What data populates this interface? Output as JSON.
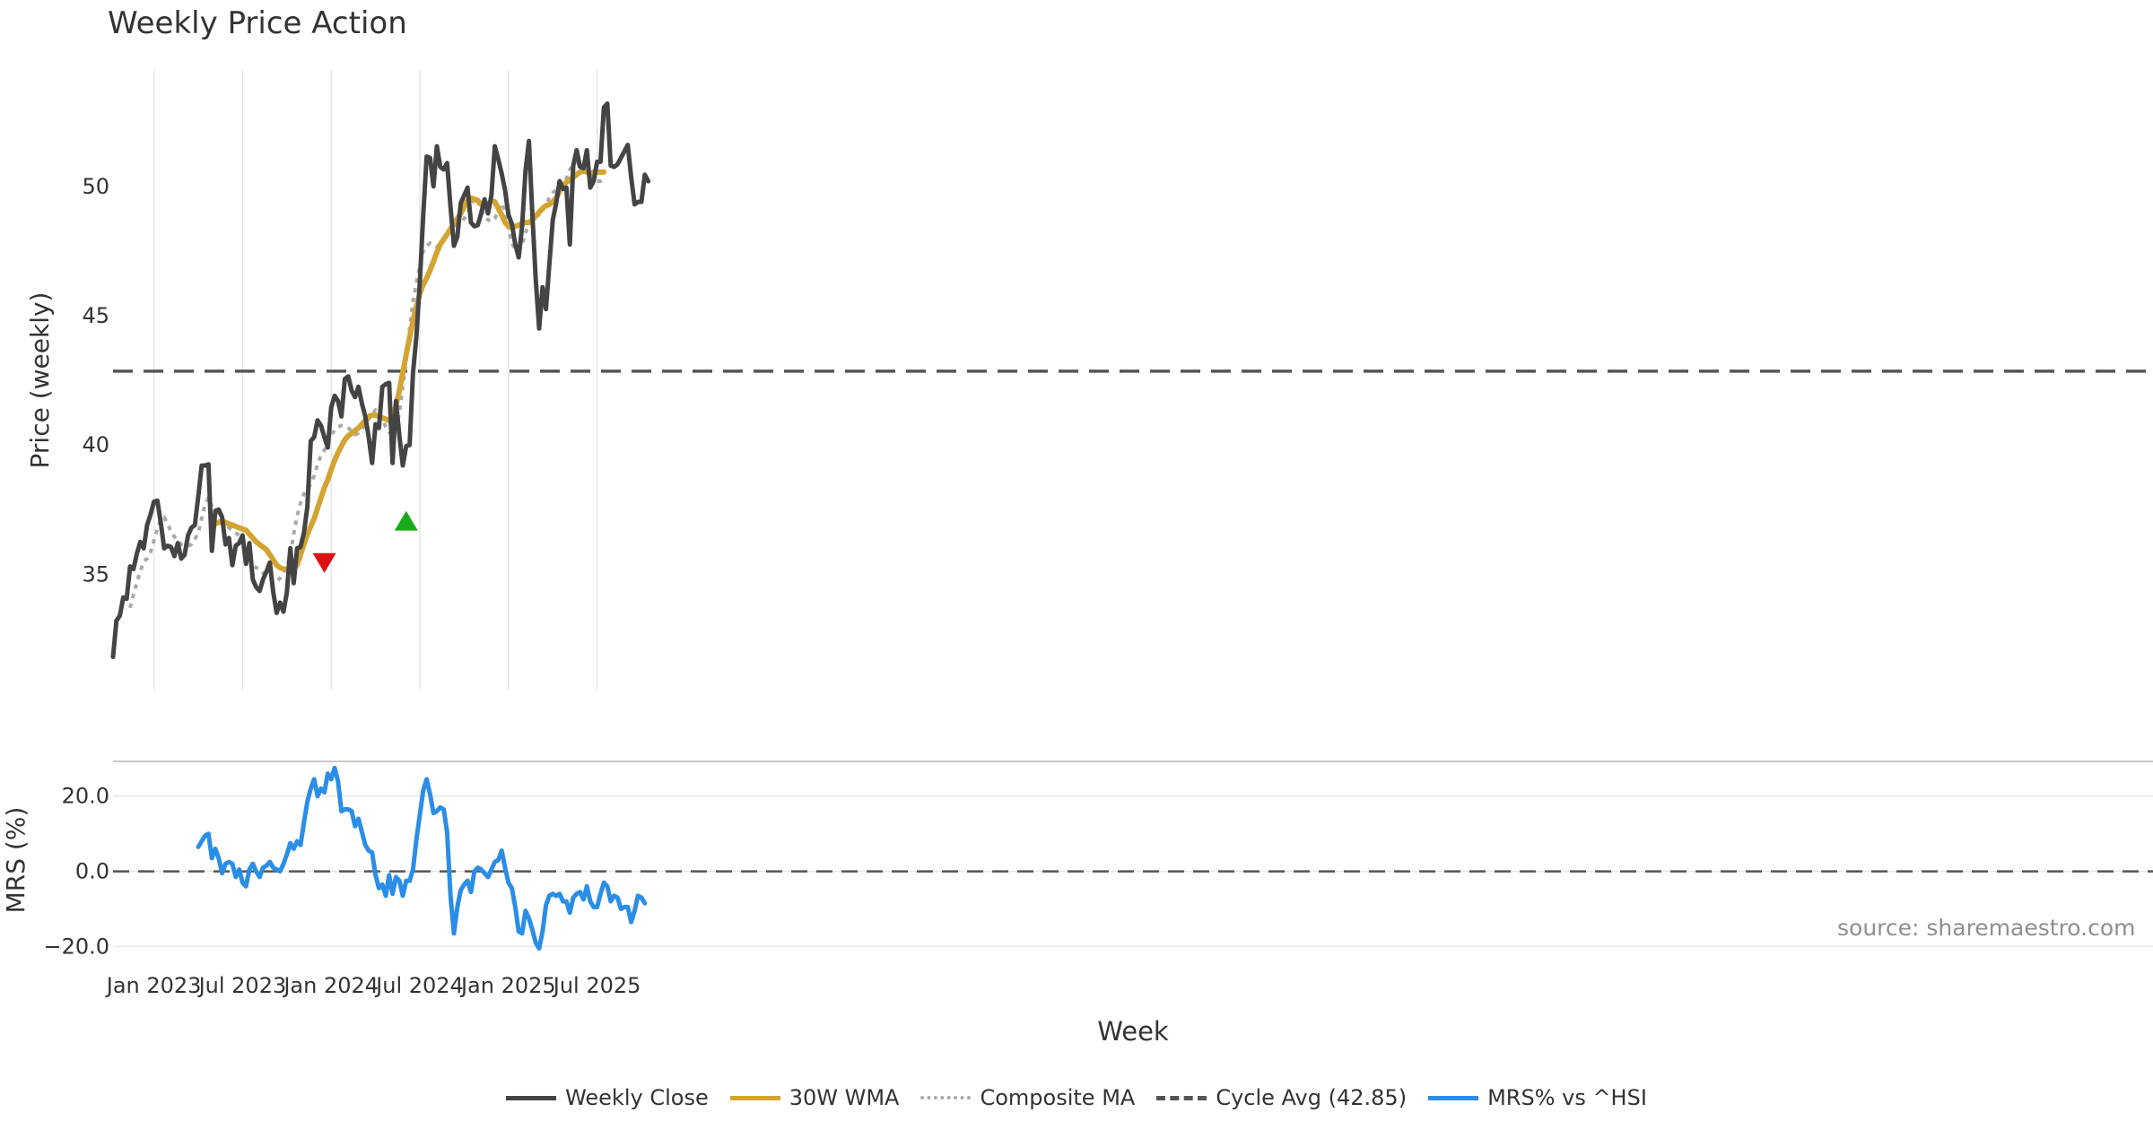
{
  "title": "Weekly Price Action",
  "source": "source: sharemaestro.com",
  "colors": {
    "close": "#444444",
    "wma": "#d4a431",
    "composite": "#aaaaaa",
    "cycle": "#555555",
    "mrs": "#2b8ee6",
    "buy": "#1aaa1a",
    "sell": "#dd1111",
    "grid": "#e6e6e6"
  },
  "legend": [
    {
      "label": "Weekly Close",
      "key": "close",
      "style": "solid"
    },
    {
      "label": "30W WMA",
      "key": "wma",
      "style": "solid"
    },
    {
      "label": "Composite MA",
      "key": "composite",
      "style": "dotted"
    },
    {
      "label": "Cycle Avg (42.85)",
      "key": "cycle",
      "style": "dashed"
    },
    {
      "label": "MRS% vs ^HSI",
      "key": "mrs",
      "style": "solid"
    }
  ],
  "chart_data": [
    {
      "type": "line",
      "ylabel": "Price (weekly)",
      "yticks": [
        35,
        40,
        45,
        50
      ],
      "ylim": [
        30.5,
        54.5
      ],
      "grid": "vertical",
      "cycle_avg": 42.85,
      "series": [
        {
          "name": "Weekly Close",
          "key": "close",
          "start_week": 0,
          "values": [
            31.8,
            33.2,
            33.4,
            34.1,
            34.05,
            35.3,
            35.2,
            35.8,
            36.25,
            36.0,
            36.9,
            37.3,
            37.8,
            37.85,
            37.0,
            36.0,
            36.1,
            36.05,
            35.7,
            36.2,
            35.6,
            35.75,
            36.5,
            36.8,
            36.9,
            38.0,
            39.2,
            39.2,
            39.25,
            35.9,
            37.45,
            37.5,
            37.2,
            36.15,
            36.4,
            35.35,
            36.1,
            36.2,
            36.5,
            35.4,
            36.2,
            34.8,
            34.5,
            34.35,
            34.8,
            35.1,
            35.45,
            34.3,
            33.5,
            33.9,
            33.55,
            34.3,
            36.0,
            34.65,
            36.0,
            36.05,
            36.6,
            37.6,
            40.15,
            40.3,
            40.95,
            40.75,
            40.3,
            39.9,
            41.45,
            41.9,
            41.7,
            41.1,
            42.55,
            42.65,
            42.1,
            41.85,
            42.25,
            41.6,
            41.1,
            40.3,
            39.3,
            40.8,
            40.65,
            42.25,
            42.35,
            42.4,
            39.3,
            41.7,
            40.35,
            39.2,
            39.95,
            40.0,
            42.8,
            44.2,
            46.3,
            48.9,
            51.15,
            51.1,
            50.0,
            51.55,
            50.75,
            50.65,
            50.9,
            49.2,
            47.7,
            48.05,
            49.35,
            49.65,
            49.95,
            48.6,
            48.45,
            48.5,
            48.95,
            49.5,
            48.95,
            49.65,
            51.55,
            51.05,
            50.5,
            49.85,
            48.9,
            48.55,
            47.75,
            47.25,
            48.45,
            50.6,
            51.75,
            48.95,
            46.4,
            44.5,
            46.1,
            45.25,
            47.0,
            48.7,
            49.35,
            50.2,
            49.9,
            49.95,
            47.75,
            50.8,
            51.4,
            50.75,
            50.7,
            51.4,
            49.95,
            50.2,
            50.95,
            50.95,
            53.05,
            53.2,
            50.8,
            50.75,
            50.85,
            51.1,
            51.35,
            51.6,
            50.35,
            49.3,
            49.4,
            49.4,
            50.45,
            50.2
          ]
        },
        {
          "name": "30W WMA",
          "key": "wma",
          "start_week": 29,
          "values": [
            36.85,
            36.95,
            37.0,
            37.05,
            37.0,
            36.95,
            36.9,
            36.85,
            36.8,
            36.75,
            36.7,
            36.55,
            36.4,
            36.25,
            36.15,
            36.05,
            35.95,
            35.75,
            35.55,
            35.35,
            35.25,
            35.2,
            35.2,
            35.22,
            35.25,
            35.35,
            35.75,
            36.15,
            36.55,
            36.85,
            37.15,
            37.55,
            37.95,
            38.35,
            38.65,
            39.05,
            39.4,
            39.7,
            39.95,
            40.2,
            40.35,
            40.45,
            40.55,
            40.65,
            40.8,
            40.95,
            41.1,
            41.15,
            41.15,
            41.1,
            41.05,
            41.0,
            40.95,
            41.1,
            41.5,
            42.1,
            42.8,
            43.5,
            44.15,
            44.8,
            45.35,
            45.85,
            46.2,
            46.45,
            46.75,
            47.1,
            47.45,
            47.75,
            47.95,
            48.15,
            48.35,
            48.55,
            48.75,
            48.95,
            49.2,
            49.45,
            49.55,
            49.5,
            49.45,
            49.3,
            49.25,
            49.3,
            49.45,
            49.4,
            49.15,
            48.9,
            48.6,
            48.45,
            48.4,
            48.45,
            48.5,
            48.55,
            48.6,
            48.6,
            48.7,
            48.85,
            49.0,
            49.15,
            49.25,
            49.3,
            49.4,
            49.55,
            49.8,
            50.05,
            50.15,
            50.25,
            50.35,
            50.45,
            50.55,
            50.6,
            50.55,
            50.5,
            50.55,
            50.55,
            50.55,
            50.55
          ]
        },
        {
          "name": "Composite MA",
          "key": "composite",
          "start_week": 5,
          "values": [
            33.7,
            34.2,
            34.7,
            35.1,
            35.5,
            35.6,
            35.85,
            36.3,
            36.75,
            37.15,
            37.2,
            36.95,
            36.65,
            36.45,
            36.3,
            36.15,
            36.1,
            36.1,
            36.15,
            36.35,
            36.6,
            37.15,
            37.7,
            37.95,
            37.6,
            37.5,
            37.35,
            37.15,
            37.0,
            36.8,
            36.7,
            36.6,
            36.5,
            36.3,
            36.0,
            35.6,
            35.35,
            35.25,
            35.2,
            35.05,
            34.95,
            34.85,
            34.75,
            34.7,
            34.85,
            35.05,
            35.3,
            35.75,
            36.55,
            37.25,
            37.75,
            38.1,
            38.25,
            38.5,
            38.8,
            39.25,
            39.6,
            39.8,
            40.1,
            40.4,
            40.55,
            40.7,
            40.75,
            40.7,
            40.65,
            40.55,
            40.4,
            40.45,
            40.6,
            40.8,
            41.0,
            41.2,
            41.35,
            41.3,
            41.0,
            40.7,
            40.5,
            40.45,
            40.55,
            41.25,
            42.25,
            43.25,
            44.5,
            45.55,
            46.25,
            46.95,
            47.5,
            47.7,
            47.8,
            47.7,
            47.65,
            47.8,
            48.0,
            48.2,
            48.3,
            48.35,
            48.45,
            48.6,
            48.75,
            48.95,
            49.25,
            49.55,
            49.4,
            49.1,
            48.85,
            48.7,
            48.65,
            48.75,
            49.05,
            49.35,
            49.05,
            48.35,
            47.8,
            47.55,
            47.5,
            47.75,
            48.2,
            48.55,
            48.7,
            48.85,
            48.9,
            49.05,
            49.3,
            49.55,
            49.75,
            49.85,
            49.9,
            50.0,
            50.3,
            50.65,
            50.8,
            50.85,
            50.9,
            50.85,
            50.7,
            50.45,
            50.3,
            50.2,
            50.2,
            50.3
          ]
        },
        {
          "name": "",
          "key": "buy",
          "marker": "triangle-up",
          "points": [
            [
              86,
              37.0
            ]
          ]
        },
        {
          "name": "",
          "key": "sell",
          "marker": "triangle-down",
          "points": [
            [
              62,
              35.5
            ]
          ]
        }
      ]
    },
    {
      "type": "line",
      "ylabel": "MRS (%)",
      "yticks": [
        "20.0",
        "0.0",
        "−20.0"
      ],
      "ytick_values": [
        20,
        0,
        -20
      ],
      "ylim": [
        -23,
        29
      ],
      "xlabel": "Week",
      "xticks": [
        {
          "label": "Jan 2023",
          "week": 12
        },
        {
          "label": "Jul 2023",
          "week": 38
        },
        {
          "label": "Jan 2024",
          "week": 64
        },
        {
          "label": "Jul 2024",
          "week": 90
        },
        {
          "label": "Jan 2025",
          "week": 116
        },
        {
          "label": "Jul 2025",
          "week": 142
        }
      ],
      "series": [
        {
          "name": "MRS% vs ^HSI",
          "key": "mrs",
          "start_week": 25,
          "values": [
            6.5,
            8.0,
            9.5,
            10.0,
            3.5,
            6.0,
            3.5,
            -0.5,
            2.0,
            2.5,
            2.0,
            -1.5,
            0.5,
            -3.0,
            -4.0,
            0.5,
            2.0,
            0.0,
            -1.5,
            1.0,
            1.5,
            2.5,
            1.0,
            0.5,
            0.0,
            2.0,
            4.5,
            7.5,
            6.0,
            8.0,
            7.0,
            13.0,
            18.5,
            22.0,
            24.5,
            20.0,
            22.0,
            21.0,
            26.0,
            24.5,
            27.5,
            24.0,
            16.0,
            16.5,
            16.5,
            16.0,
            12.0,
            14.0,
            10.5,
            7.0,
            5.5,
            5.0,
            -1.0,
            -4.5,
            -3.5,
            -6.5,
            -1.0,
            -6.0,
            -1.5,
            -2.5,
            -6.5,
            -2.5,
            -2.5,
            0.5,
            8.5,
            15.0,
            21.5,
            24.5,
            20.5,
            15.5,
            16.0,
            17.0,
            16.5,
            10.5,
            -6.5,
            -16.5,
            -9.5,
            -5.0,
            -3.5,
            -2.5,
            -5.5,
            0.0,
            1.0,
            0.5,
            -0.5,
            -1.5,
            0.5,
            2.5,
            3.0,
            5.5,
            1.0,
            -3.0,
            -4.5,
            -9.5,
            -16.0,
            -16.5,
            -10.5,
            -12.5,
            -15.5,
            -19.0,
            -20.5,
            -16.0,
            -9.0,
            -6.5,
            -6.0,
            -6.5,
            -6.0,
            -8.0,
            -8.0,
            -11.0,
            -7.0,
            -6.0,
            -5.5,
            -7.5,
            -4.0,
            -8.0,
            -9.5,
            -9.5,
            -6.0,
            -3.0,
            -4.0,
            -8.0,
            -6.5,
            -7.0,
            -10.0,
            -9.5,
            -9.5,
            -13.5,
            -10.5,
            -6.5,
            -7.0,
            -8.5
          ]
        }
      ]
    }
  ]
}
